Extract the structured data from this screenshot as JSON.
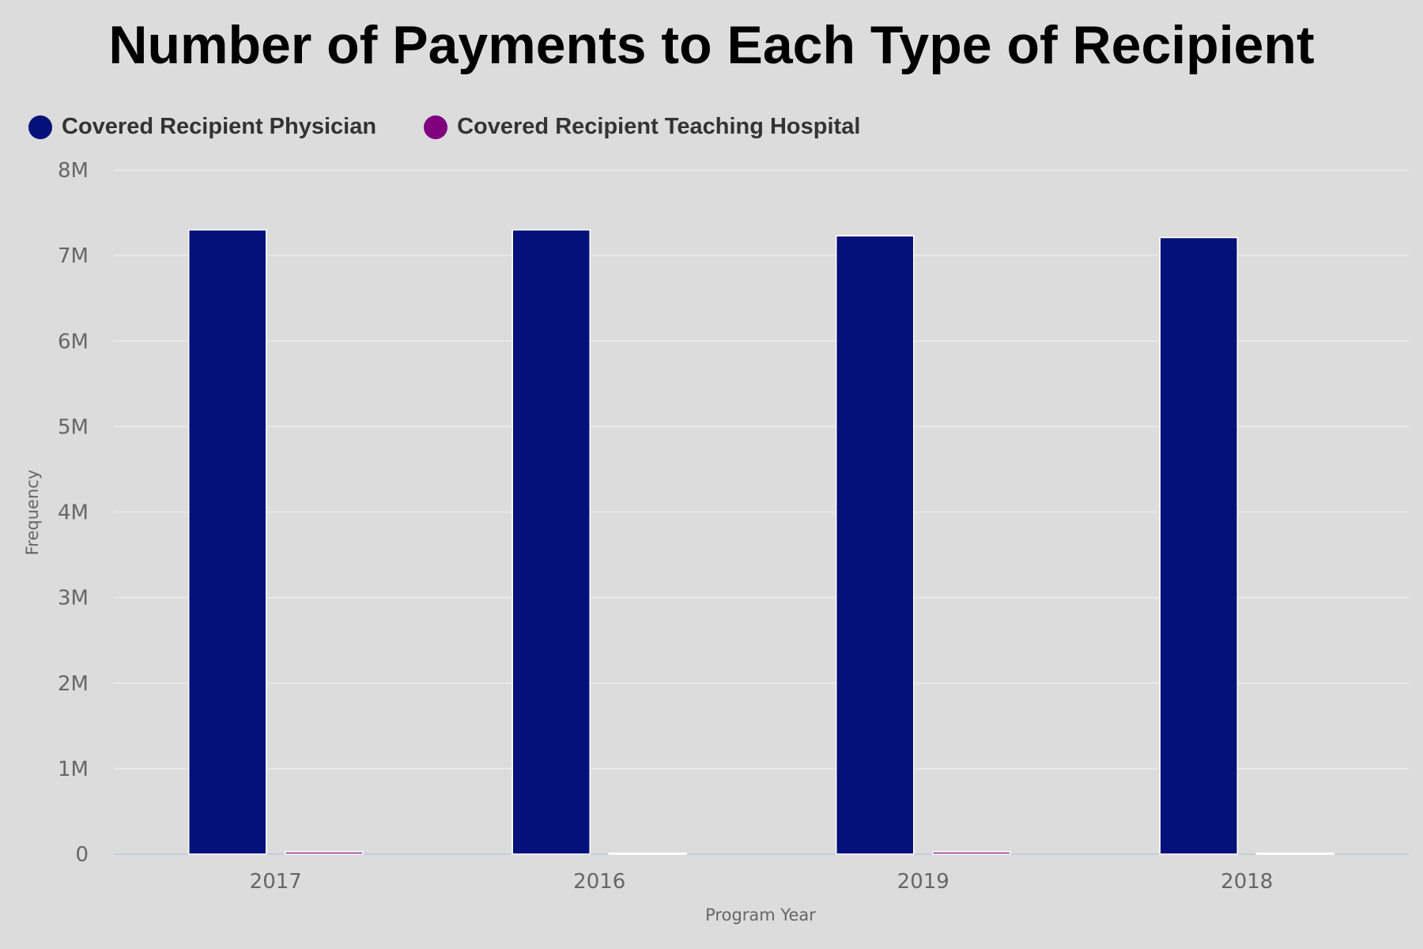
{
  "chart_data": {
    "type": "bar",
    "title": "Number of Payments to Each Type of Recipient",
    "xlabel": "Program Year",
    "ylabel": "Frequency",
    "categories": [
      "2017",
      "2016",
      "2019",
      "2018"
    ],
    "series": [
      {
        "name": "Covered Recipient Physician",
        "color": "#05117a",
        "values": [
          7300000,
          7300000,
          7230000,
          7210000
        ]
      },
      {
        "name": "Covered Recipient Teaching Hospital",
        "color": "#800080",
        "values": [
          25000,
          12000,
          25000,
          12000
        ]
      }
    ],
    "ylim": [
      0,
      8000000
    ],
    "yticks": [
      0,
      1000000,
      2000000,
      3000000,
      4000000,
      5000000,
      6000000,
      7000000,
      8000000
    ],
    "ytick_labels": [
      "0",
      "1M",
      "2M",
      "3M",
      "4M",
      "5M",
      "6M",
      "7M",
      "8M"
    ],
    "grid": true,
    "legend_position": "top-left"
  }
}
